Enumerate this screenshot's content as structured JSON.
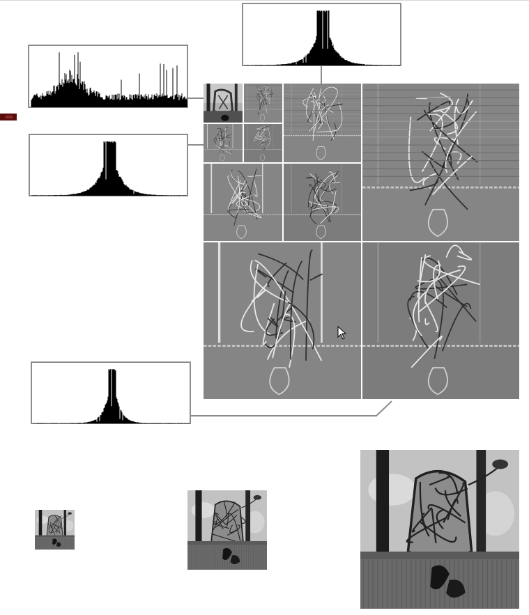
{
  "figure": {
    "histograms": [
      {
        "name": "approximation-histogram",
        "shape": "broad"
      },
      {
        "name": "level1-detail-histogram",
        "shape": "peaked"
      },
      {
        "name": "level2-detail-histogram",
        "shape": "peaked"
      },
      {
        "name": "level3-detail-histogram",
        "shape": "very-peaked"
      }
    ],
    "decomposition": {
      "levels": 3,
      "subbands_per_level": 3
    },
    "reconstructions": [
      {
        "name": "reconstruction-small",
        "scale": "1/4"
      },
      {
        "name": "reconstruction-medium",
        "scale": "1/2"
      },
      {
        "name": "reconstruction-large",
        "scale": "1"
      }
    ],
    "colors": {
      "border": "#8c8c8c",
      "detail_gray": "#828282",
      "histogram_bars": "#000000",
      "side_marker": "#5a0d0d"
    }
  }
}
